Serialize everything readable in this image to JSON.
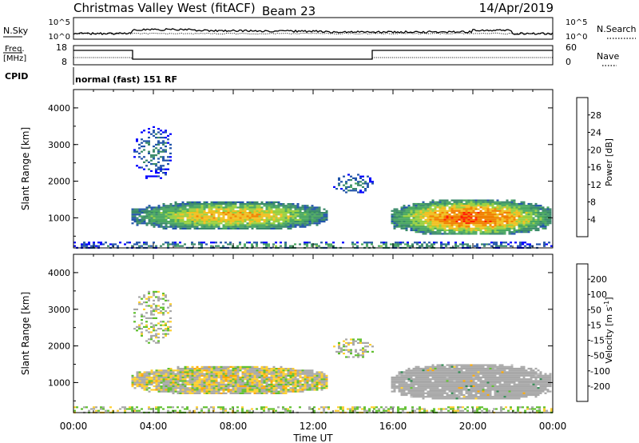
{
  "header": {
    "title": "Christmas Valley West (fitACF)",
    "beam": "Beam 23",
    "date": "14/Apr/2019"
  },
  "panel_labels": {
    "nsky": "N.Sky",
    "nsearch": "N.Search",
    "freq_line1": "Freq.",
    "freq_line2": "[MHz]",
    "nave": "Nave",
    "cpid": "CPID",
    "cpid_value": "normal (fast) 151 RF",
    "nsky_ticks": [
      "10^5",
      "10^0"
    ],
    "nsearch_ticks": [
      "10^5",
      "10^0"
    ],
    "freq_ticks": [
      "18",
      "8"
    ],
    "nave_ticks": [
      "60",
      "0"
    ]
  },
  "colors": {
    "power_scale": [
      "#0000ff",
      "#2255aa",
      "#3a8a6a",
      "#4aa860",
      "#98d040",
      "#f0c020",
      "#f08000",
      "#ff2000"
    ],
    "velocity_scale": [
      "#ff0000",
      "#ff6a00",
      "#ffa800",
      "#ffd030",
      "#c0c0c0",
      "#60c030",
      "#2e8a50",
      "#2a5aa8",
      "#1030c0"
    ],
    "ground_scatter": "#a8a8a8"
  },
  "chart_data": [
    {
      "type": "heatmap",
      "title": "",
      "xlabel": "",
      "ylabel": "Slant Range [km]",
      "colorbar_label": "Power [dB]",
      "colorbar_ticks": [
        "28",
        "24",
        "20",
        "16",
        "12",
        "8",
        "4"
      ],
      "x_ticks": [
        "00:00",
        "04:00",
        "08:00",
        "12:00",
        "16:00",
        "20:00",
        "00:00"
      ],
      "y_ticks": [
        "4000",
        "3000",
        "2000",
        "1000"
      ],
      "xlim": [
        0,
        24
      ],
      "ylim": [
        180,
        4500
      ],
      "features": [
        {
          "x": [
            2.9,
            12.7
          ],
          "y": [
            700,
            1450
          ],
          "value": 22
        },
        {
          "x": [
            15.9,
            23.9
          ],
          "y": [
            550,
            1500
          ],
          "value": 26
        },
        {
          "x": [
            3.0,
            4.9
          ],
          "y": [
            2100,
            3500
          ],
          "value": 10
        },
        {
          "x": [
            13.0,
            15.0
          ],
          "y": [
            1700,
            2200
          ],
          "value": 11
        },
        {
          "x": [
            0,
            24
          ],
          "y": [
            180,
            350
          ],
          "value": 14
        }
      ]
    },
    {
      "type": "heatmap",
      "title": "",
      "xlabel": "Time UT",
      "ylabel": "Slant Range [km]",
      "colorbar_label": "Velocity [m s^-1]",
      "colorbar_ticks": [
        "200",
        "100",
        "50",
        "15",
        "-15",
        "-50",
        "-100",
        "-200"
      ],
      "x_ticks": [
        "00:00",
        "04:00",
        "08:00",
        "12:00",
        "16:00",
        "20:00",
        "00:00"
      ],
      "y_ticks": [
        "4000",
        "3000",
        "2000",
        "1000"
      ],
      "xlim": [
        0,
        24
      ],
      "ylim": [
        180,
        4500
      ],
      "features": [
        {
          "x": [
            2.9,
            12.7
          ],
          "y": [
            700,
            1450
          ],
          "value": -40
        },
        {
          "x": [
            15.9,
            23.9
          ],
          "y": [
            550,
            1500
          ],
          "value": 0
        },
        {
          "x": [
            3.0,
            4.9
          ],
          "y": [
            2100,
            3500
          ],
          "value": -30
        },
        {
          "x": [
            13.0,
            15.0
          ],
          "y": [
            1700,
            2200
          ],
          "value": 20
        },
        {
          "x": [
            0,
            24
          ],
          "y": [
            180,
            350
          ],
          "value": 30
        }
      ]
    }
  ]
}
